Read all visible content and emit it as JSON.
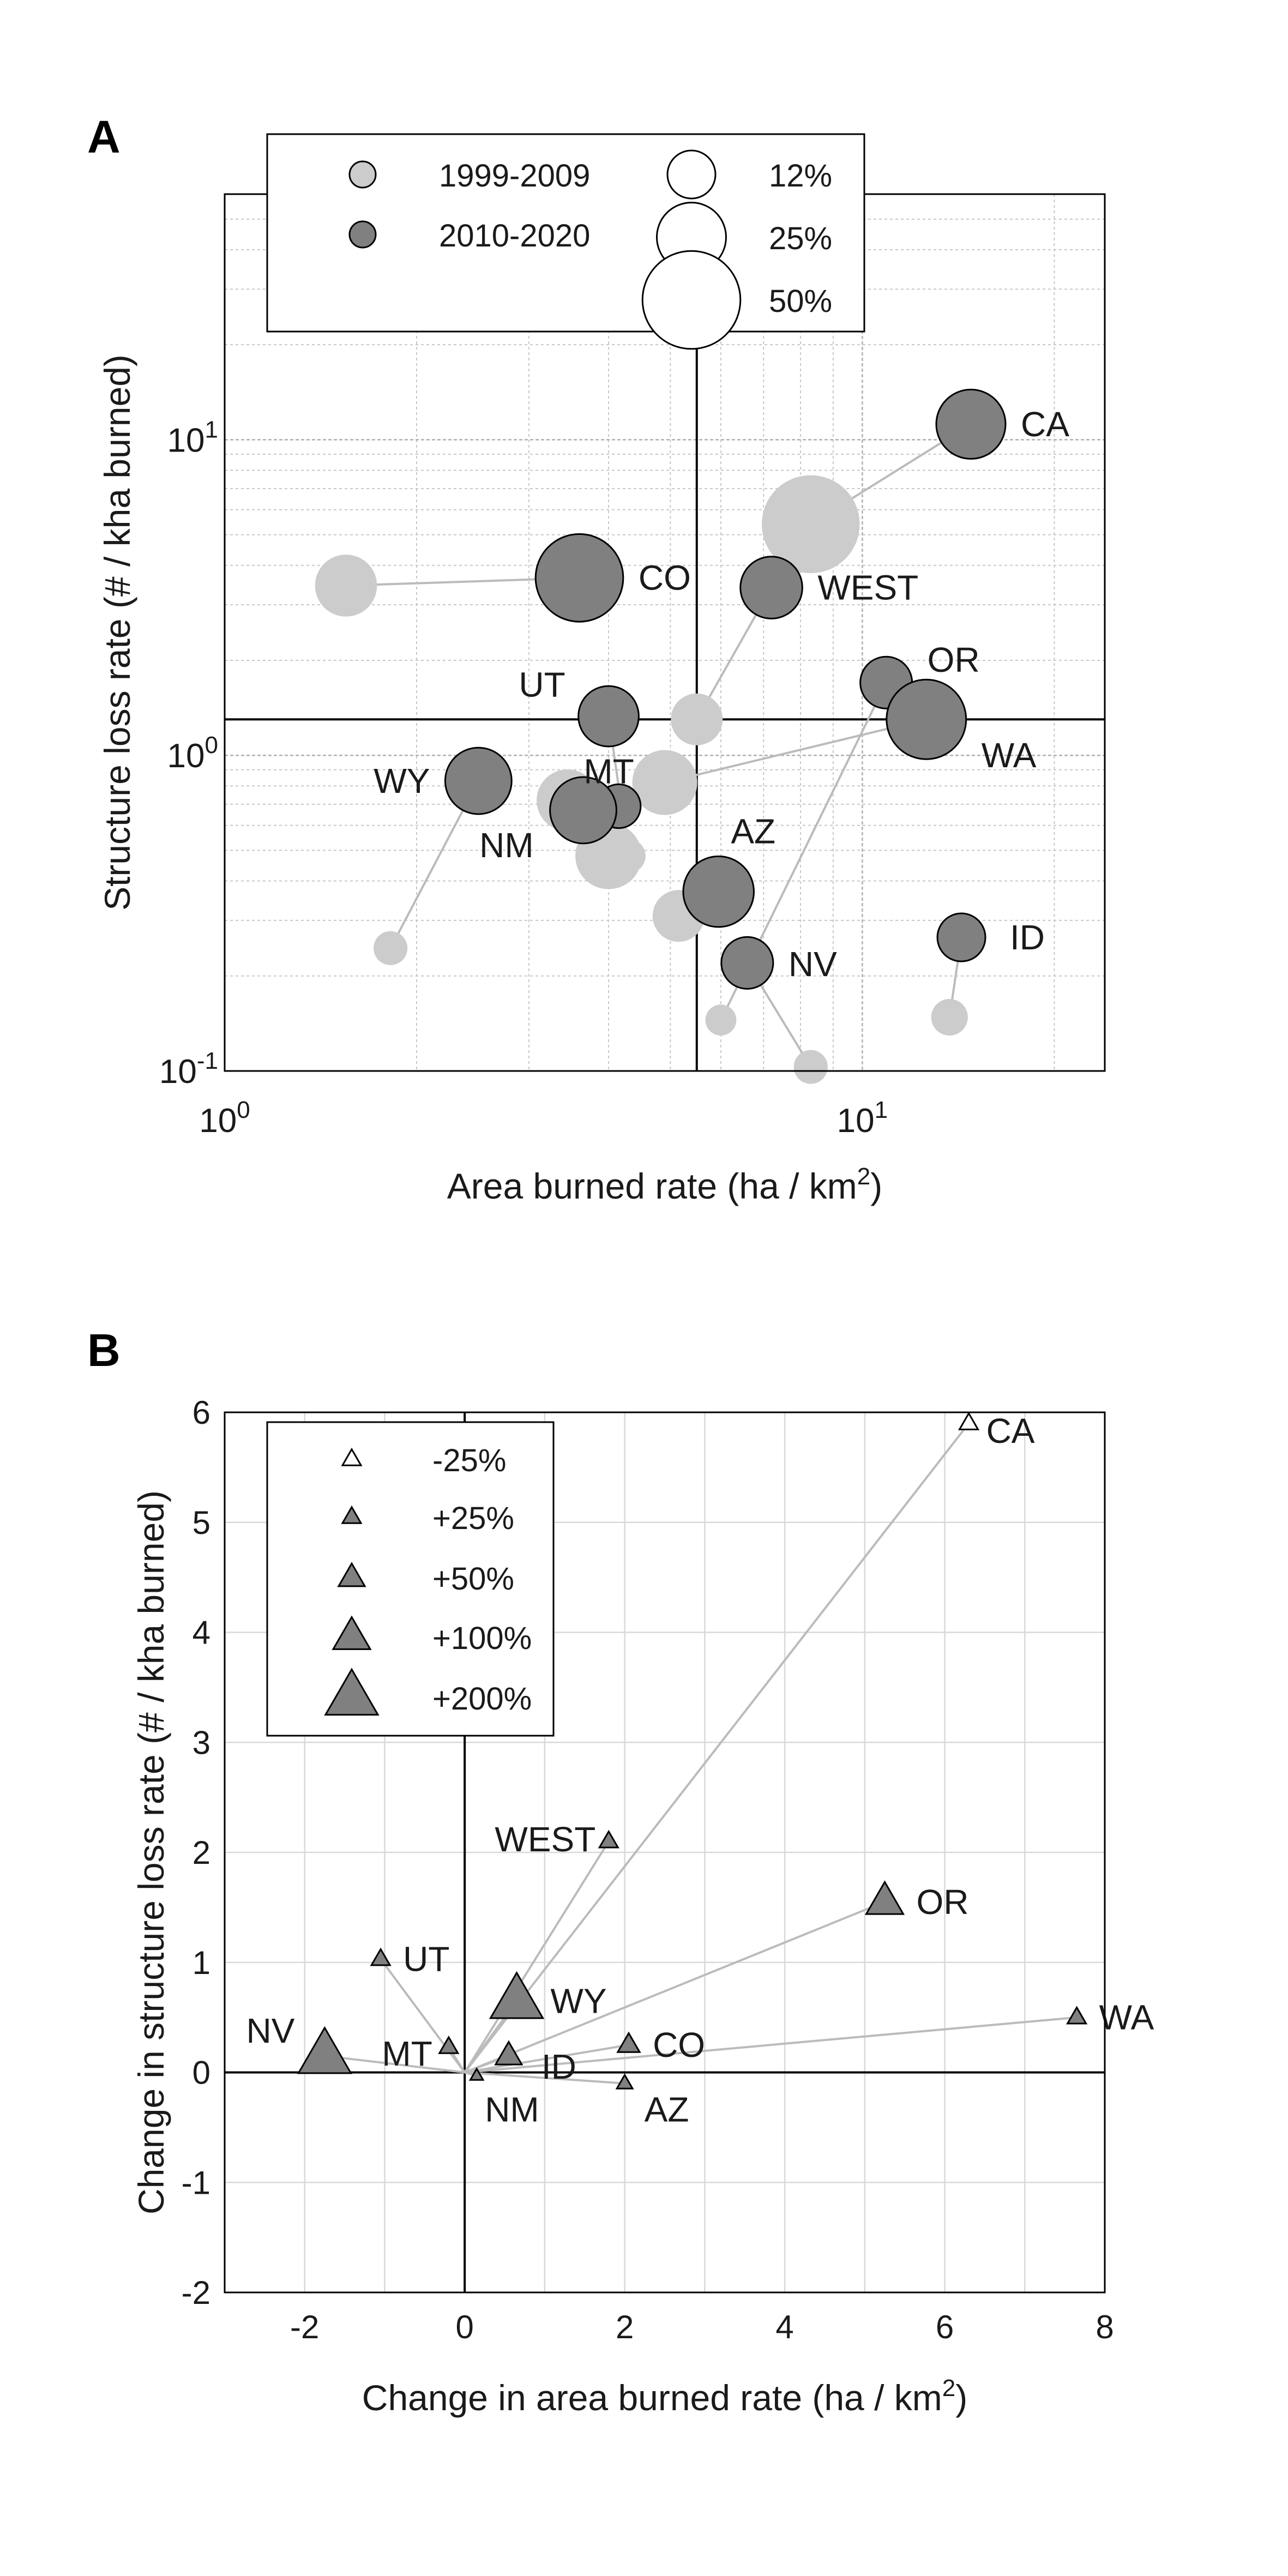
{
  "panels": {
    "a_letter": "A",
    "b_letter": "B"
  },
  "chart_data": [
    {
      "type": "scatter",
      "title": "",
      "xlabel": "Area burned rate (ha / km",
      "xlabel_sup": "2",
      "xlabel_end": ")",
      "ylabel": "Structure loss rate (# / kha burned)",
      "xscale": "log",
      "yscale": "log",
      "xlim": [
        1,
        24
      ],
      "ylim": [
        0.1,
        60
      ],
      "x_ticks": [
        {
          "value": 1,
          "base": "10",
          "exp": "0"
        },
        {
          "value": 10,
          "base": "10",
          "exp": "1"
        }
      ],
      "y_ticks": [
        {
          "value": 0.1,
          "base": "10",
          "exp": "-1"
        },
        {
          "value": 1,
          "base": "10",
          "exp": "0"
        },
        {
          "value": 10,
          "base": "10",
          "exp": "1"
        }
      ],
      "grid": true,
      "reference_lines": {
        "x": 5.5,
        "y": 1.3
      },
      "colors": {
        "p1999": "#cccccc",
        "p2010": "#808080",
        "line": "#bbbbbb"
      },
      "legend": {
        "position": "top-left",
        "periods": [
          {
            "label": "1999-2009",
            "key": "p1999"
          },
          {
            "label": "2010-2020",
            "key": "p2010"
          }
        ],
        "sizes": [
          {
            "label": "12%",
            "pct": 12
          },
          {
            "label": "25%",
            "pct": 25
          },
          {
            "label": "50%",
            "pct": 50
          }
        ]
      },
      "series": [
        {
          "state": "CA",
          "p1": {
            "x": 8.3,
            "y": 5.4,
            "pct": 50
          },
          "p2": {
            "x": 14.8,
            "y": 11.2,
            "pct": 25
          },
          "label_side": "right"
        },
        {
          "state": "CO",
          "p1": {
            "x": 1.55,
            "y": 3.45,
            "pct": 20
          },
          "p2": {
            "x": 3.6,
            "y": 3.65,
            "pct": 40
          },
          "label_side": "right"
        },
        {
          "state": "WEST",
          "p1": {
            "x": 5.5,
            "y": 1.3,
            "pct": 14
          },
          "p2": {
            "x": 7.2,
            "y": 3.4,
            "pct": 20
          },
          "label_side": "right"
        },
        {
          "state": "OR",
          "p1": {
            "x": 6.0,
            "y": 0.145,
            "pct": 5
          },
          "p2": {
            "x": 10.9,
            "y": 1.7,
            "pct": 14
          },
          "label_side": "right"
        },
        {
          "state": "WA",
          "p1": {
            "x": 4.9,
            "y": 0.82,
            "pct": 22
          },
          "p2": {
            "x": 12.6,
            "y": 1.3,
            "pct": 33
          },
          "label_side": "right"
        },
        {
          "state": "UT",
          "p1": {
            "x": 4.3,
            "y": 0.48,
            "pct": 6
          },
          "p2": {
            "x": 4.0,
            "y": 1.33,
            "pct": 19
          },
          "label_side": "left"
        },
        {
          "state": "MT",
          "p1": {
            "x": 3.45,
            "y": 0.72,
            "pct": 20
          },
          "p2": {
            "x": 4.15,
            "y": 0.69,
            "pct": 10
          },
          "label_side": "left"
        },
        {
          "state": "WY",
          "p1": {
            "x": 1.82,
            "y": 0.245,
            "pct": 6
          },
          "p2": {
            "x": 2.5,
            "y": 0.83,
            "pct": 23
          },
          "label_side": "left"
        },
        {
          "state": "NM",
          "p1": {
            "x": 4.0,
            "y": 0.48,
            "pct": 23
          },
          "p2": {
            "x": 3.65,
            "y": 0.67,
            "pct": 23
          },
          "label_side": "left"
        },
        {
          "state": "AZ",
          "p1": {
            "x": 5.15,
            "y": 0.31,
            "pct": 14
          },
          "p2": {
            "x": 5.95,
            "y": 0.37,
            "pct": 26
          },
          "label_side": "upright"
        },
        {
          "state": "NV",
          "p1": {
            "x": 8.3,
            "y": 0.103,
            "pct": 6
          },
          "p2": {
            "x": 6.6,
            "y": 0.22,
            "pct": 14
          },
          "label_side": "right"
        },
        {
          "state": "ID",
          "p1": {
            "x": 13.7,
            "y": 0.148,
            "pct": 7
          },
          "p2": {
            "x": 14.3,
            "y": 0.265,
            "pct": 12
          },
          "label_side": "right"
        }
      ]
    },
    {
      "type": "scatter",
      "title": "",
      "xlabel": "Change in area burned rate (ha / km",
      "xlabel_sup": "2",
      "xlabel_end": ")",
      "ylabel": "Change in structure loss rate (# / kha burned)",
      "xlim": [
        -3,
        8
      ],
      "ylim": [
        -2,
        6
      ],
      "x_ticks": [
        -2,
        0,
        2,
        4,
        6,
        8
      ],
      "y_ticks": [
        -2,
        -1,
        0,
        1,
        2,
        3,
        4,
        5,
        6
      ],
      "grid": true,
      "colors": {
        "increase": "#808080",
        "decrease": "#ffffff",
        "line": "#bbbbbb"
      },
      "legend": {
        "position": "top-left",
        "entries": [
          {
            "label": "-25%",
            "pct": -25
          },
          {
            "label": "+25%",
            "pct": 25
          },
          {
            "label": "+50%",
            "pct": 50
          },
          {
            "label": "+100%",
            "pct": 100
          },
          {
            "label": "+200%",
            "pct": 200
          }
        ]
      },
      "points": [
        {
          "state": "CA",
          "x": 6.3,
          "y": 5.9,
          "pct": -25,
          "label_side": "right"
        },
        {
          "state": "WEST",
          "x": 1.8,
          "y": 2.1,
          "pct": 25,
          "label_side": "left"
        },
        {
          "state": "OR",
          "x": 5.25,
          "y": 1.55,
          "pct": 100,
          "label_side": "right"
        },
        {
          "state": "UT",
          "x": -1.05,
          "y": 1.03,
          "pct": 25,
          "label_side": "right"
        },
        {
          "state": "WY",
          "x": 0.65,
          "y": 0.65,
          "pct": 200,
          "label_side": "right"
        },
        {
          "state": "NV",
          "x": -1.75,
          "y": 0.15,
          "pct": 200,
          "label_side": "left"
        },
        {
          "state": "MT",
          "x": -0.2,
          "y": 0.23,
          "pct": 25,
          "label_side": "left"
        },
        {
          "state": "ID",
          "x": 0.55,
          "y": 0.15,
          "pct": 50,
          "label_side": "right"
        },
        {
          "state": "CO",
          "x": 2.05,
          "y": 0.25,
          "pct": 35,
          "label_side": "right"
        },
        {
          "state": "WA",
          "x": 7.65,
          "y": 0.5,
          "pct": 25,
          "label_side": "right"
        },
        {
          "state": "NM",
          "x": 0.15,
          "y": -0.03,
          "pct": 12,
          "label_side": "below"
        },
        {
          "state": "AZ",
          "x": 2.0,
          "y": -0.1,
          "pct": 18,
          "label_side": "belowright"
        }
      ]
    }
  ]
}
